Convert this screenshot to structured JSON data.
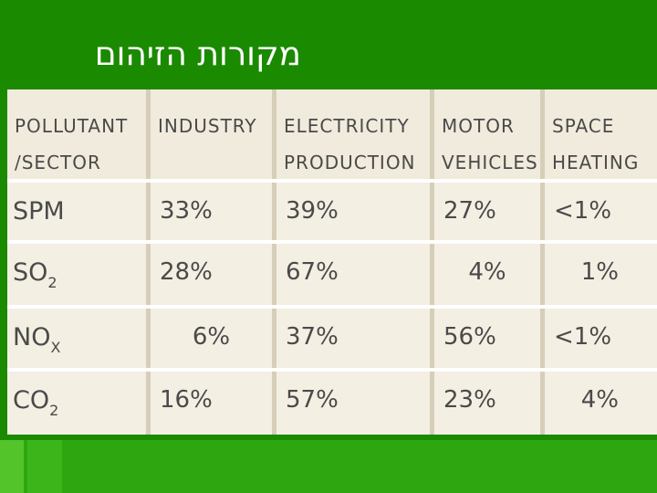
{
  "slide": {
    "title": "מקורות הזיהום"
  },
  "table": {
    "header": {
      "pollutant_line1": "POLLUTANT",
      "pollutant_line2": "/SECTOR",
      "industry": "INDUSTRY",
      "electricity_line1": "ELECTRICITY",
      "electricity_line2": "PRODUCTION",
      "motor_line1": "MOTOR",
      "motor_line2": "VEHICLES",
      "space_line1": "SPACE",
      "space_line2": "HEATING"
    },
    "rows": [
      {
        "pollutant": "SPM",
        "sub": "",
        "industry": "33%",
        "electricity": "39%",
        "motor": "27%",
        "heating": "<1%"
      },
      {
        "pollutant": "SO",
        "sub": "2",
        "industry": "28%",
        "electricity": "67%",
        "motor": "4%",
        "heating": "1%"
      },
      {
        "pollutant": "NO",
        "sub": "X",
        "industry": "6%",
        "electricity": "37%",
        "motor": "56%",
        "heating": "<1%"
      },
      {
        "pollutant": "CO",
        "sub": "2",
        "industry": "16%",
        "electricity": "57%",
        "motor": "23%",
        "heating": "4%"
      }
    ]
  },
  "colors": {
    "background_green": "#1a8a00",
    "table_fill": "#f4efe3",
    "text": "#4a4a4a"
  }
}
